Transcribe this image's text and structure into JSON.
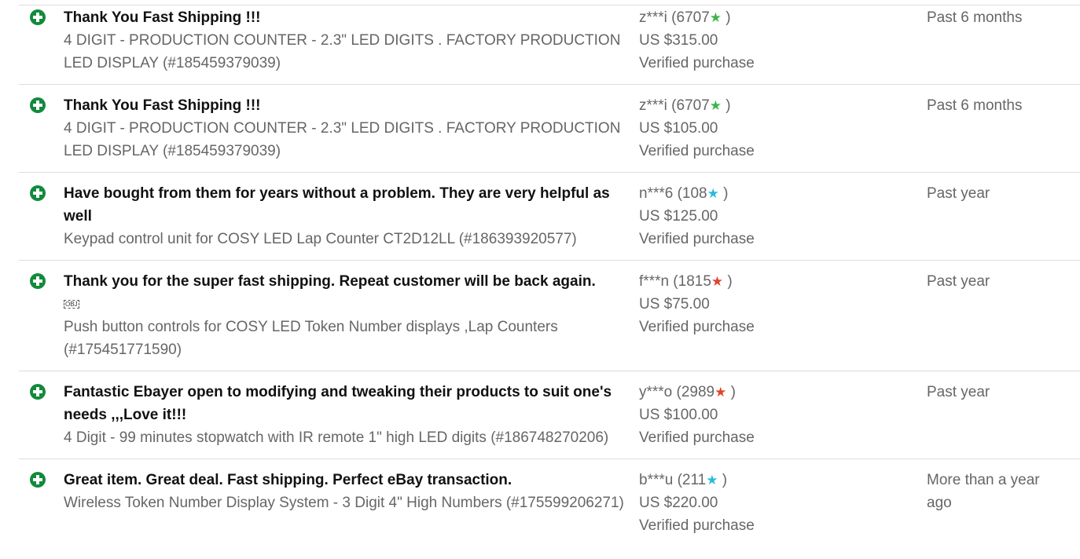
{
  "colors": {
    "positive_icon": "#128a3c",
    "star_green": "#3cb64a",
    "star_cyan": "#2bbad8",
    "star_red": "#e0442c"
  },
  "reviews": [
    {
      "comment": "Thank You Fast Shipping !!!",
      "item": "4 DIGIT - PRODUCTION COUNTER - 2.3\" LED DIGITS . FACTORY PRODUCTION LED DISPLAY (#185459379039)",
      "user": "z***i (6707",
      "star_color": "#3cb64a",
      "price": "US $315.00",
      "verified": "Verified purchase",
      "time": "Past 6 months",
      "icon": "plus-circle-icon"
    },
    {
      "comment": "Thank You Fast Shipping !!!",
      "item": "4 DIGIT - PRODUCTION COUNTER - 2.3\" LED DIGITS . FACTORY PRODUCTION LED DISPLAY (#185459379039)",
      "user": "z***i (6707",
      "star_color": "#3cb64a",
      "price": "US $105.00",
      "verified": "Verified purchase",
      "time": "Past 6 months",
      "icon": "plus-circle-icon"
    },
    {
      "comment": "Have bought from them for years without a problem. They are very helpful as well",
      "item": "Keypad control unit for COSY LED Lap Counter CT2D12LL (#186393920577)",
      "user": "n***6 (108",
      "star_color": "#2bbad8",
      "price": "US $125.00",
      "verified": "Verified purchase",
      "time": "Past year",
      "icon": "plus-circle-icon"
    },
    {
      "comment": "Thank you for the super fast shipping. Repeat customer will be back again.",
      "obj": "OBJ",
      "item": "Push button controls for COSY LED Token Number displays ,Lap Counters (#175451771590)",
      "user": "f***n (1815",
      "star_color": "#e0442c",
      "price": "US $75.00",
      "verified": "Verified purchase",
      "time": "Past year",
      "icon": "plus-circle-icon"
    },
    {
      "comment": "Fantastic Ebayer open to modifying and tweaking their products to suit one's needs ,,,Love it!!!",
      "item": "4 Digit - 99 minutes stopwatch with IR remote 1\" high LED digits (#186748270206)",
      "user": "y***o (2989",
      "star_color": "#e0442c",
      "price": "US $100.00",
      "verified": "Verified purchase",
      "time": "Past year",
      "icon": "plus-circle-icon"
    },
    {
      "comment": "Great item. Great deal. Fast shipping. Perfect eBay transaction.",
      "item": "Wireless Token Number Display System - 3 Digit 4\" High Numbers (#175599206271)",
      "user": "b***u (211",
      "star_color": "#2bbad8",
      "price": "US $220.00",
      "verified": "Verified purchase",
      "time": "More than a year ago",
      "icon": "plus-circle-icon"
    }
  ]
}
